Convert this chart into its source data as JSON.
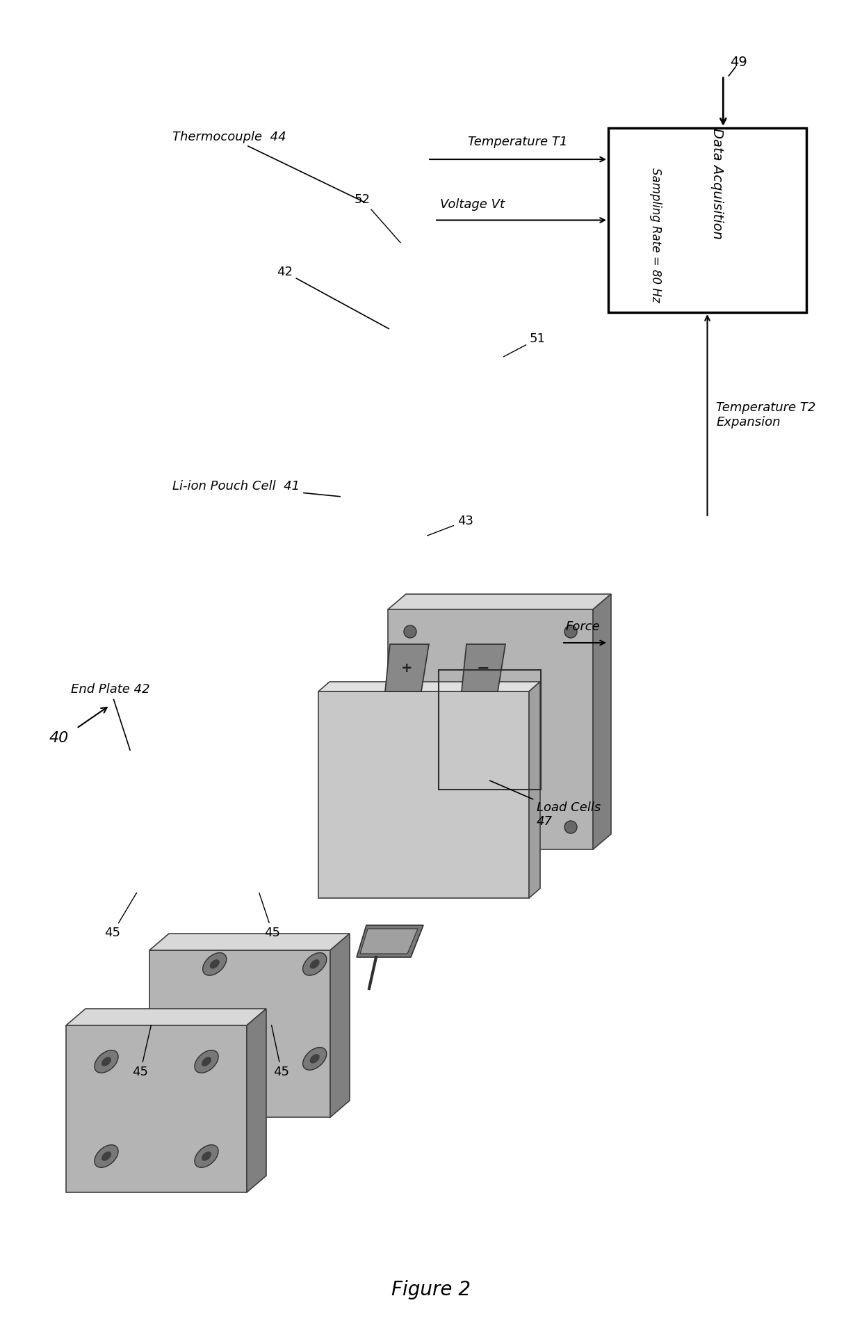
{
  "figure_label": "Figure 2",
  "bg_color": "#ffffff",
  "diagram": {
    "assembly_label": "40",
    "end_plate_label": "End Plate 42",
    "bolt_label": "45",
    "load_cells_label": "Load Cells\n47",
    "pouch_cell_label": "Li-ion Pouch Cell  41",
    "thermocouple_label": "Thermocouple  44",
    "ref52": "52",
    "ref51": "51",
    "ref43": "43",
    "ref42": "42",
    "temperature_t1_label": "Temperature T1",
    "voltage_vt_label": "Voltage Vt",
    "temp_t2_label": "Temperature T2\nExpansion",
    "force_label": "Force",
    "da_box_label": "Data Acquisition",
    "da_box_sub": "Sampling Rate = 80 Hz",
    "ref49": "49",
    "plate_color": "#b4b4b4",
    "plate_dark": "#808080",
    "plate_light": "#d8d8d8",
    "bolt_color": "#282828",
    "washer_color": "#787878",
    "box_color": "#ffffff",
    "box_edge": "#000000"
  }
}
